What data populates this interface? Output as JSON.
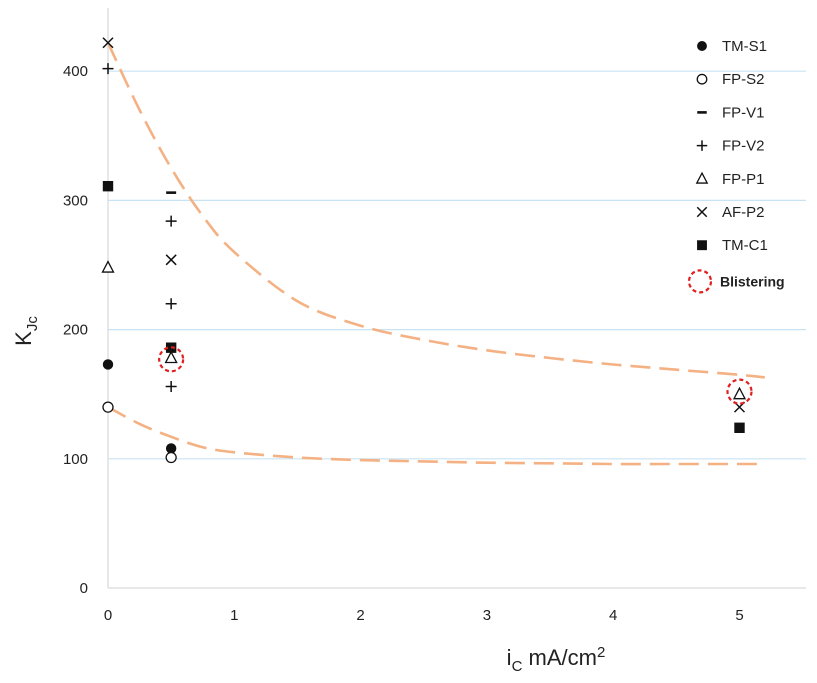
{
  "chart_data": {
    "type": "scatter",
    "title": "",
    "xlabel": {
      "main": "i",
      "sub": "C",
      "rest": " mA/cm",
      "sup": "2"
    },
    "ylabel": {
      "main": "K",
      "sub": "Jc"
    },
    "xlim": [
      0,
      5.5
    ],
    "ylim": [
      0,
      450
    ],
    "xticks": [
      0,
      1,
      2,
      3,
      4,
      5
    ],
    "yticks": [
      0,
      100,
      200,
      300,
      400
    ],
    "grid": "horizontal",
    "legend_position": "top-right",
    "series": [
      {
        "name": "TM-S1",
        "marker": "filled-circle",
        "x": [
          0,
          0.5
        ],
        "y": [
          173,
          108
        ]
      },
      {
        "name": "FP-S2",
        "marker": "open-circle",
        "x": [
          0,
          0.5
        ],
        "y": [
          140,
          101
        ]
      },
      {
        "name": "FP-V1",
        "marker": "dash",
        "x": [
          0.5
        ],
        "y": [
          306
        ]
      },
      {
        "name": "FP-V2",
        "marker": "plus",
        "x": [
          0,
          0.5,
          0.5,
          0.5
        ],
        "y": [
          402,
          284,
          220,
          156
        ]
      },
      {
        "name": "FP-P1",
        "marker": "open-triangle",
        "x": [
          0,
          0.5,
          5
        ],
        "y": [
          248,
          178,
          150
        ]
      },
      {
        "name": "AF-P2",
        "marker": "cross",
        "x": [
          0,
          0.5,
          5
        ],
        "y": [
          422,
          254,
          140
        ]
      },
      {
        "name": "TM-C1",
        "marker": "filled-square",
        "x": [
          0,
          0.5,
          5
        ],
        "y": [
          311,
          186,
          124
        ]
      }
    ],
    "blistering": {
      "name": "Blistering",
      "points": [
        {
          "x": 0.5,
          "y": 177
        },
        {
          "x": 5,
          "y": 152
        }
      ]
    },
    "trend_curves": [
      {
        "name": "upper-envelope",
        "x": [
          0,
          0.25,
          0.5,
          0.75,
          1,
          1.5,
          2,
          2.5,
          3,
          3.5,
          4,
          4.5,
          5,
          5.2
        ],
        "y": [
          422,
          370,
          325,
          288,
          260,
          222,
          203,
          192,
          184,
          178,
          173,
          169,
          165,
          163
        ]
      },
      {
        "name": "lower-envelope",
        "x": [
          0,
          0.25,
          0.5,
          0.75,
          1,
          1.5,
          2,
          2.5,
          3,
          3.5,
          4,
          4.5,
          5,
          5.2
        ],
        "y": [
          140,
          127,
          117,
          109,
          105,
          101,
          99,
          98,
          97,
          96.5,
          96,
          96,
          96,
          96
        ]
      }
    ],
    "colors": {
      "curve": "#f4b183",
      "grid": "#c8e3f5",
      "axis": "#d9d9d9",
      "blister": "#e02020",
      "marker": "#111111"
    }
  }
}
